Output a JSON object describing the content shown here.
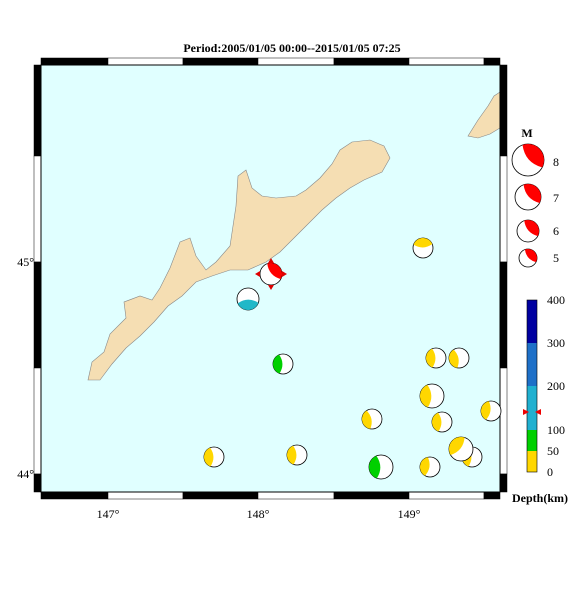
{
  "title": "Period:2005/01/05 00:00--2015/01/05 07:25",
  "x_labels": [
    "147°",
    "148°",
    "149°"
  ],
  "y_labels": [
    "45°",
    "44°"
  ],
  "magnitude_legend": {
    "title": "M",
    "labels": [
      "8",
      "7",
      "6",
      "5"
    ]
  },
  "depth_scale": {
    "title": "Depth(km)",
    "labels": [
      "400",
      "300",
      "200",
      "100",
      "50",
      "0"
    ]
  }
}
